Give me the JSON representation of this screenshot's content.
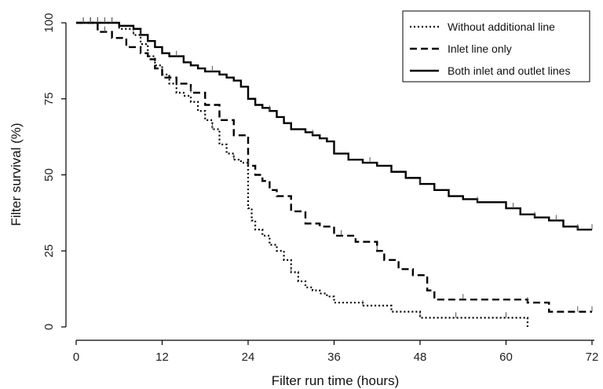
{
  "chart_data": {
    "type": "line",
    "subtype": "kaplan-meier step",
    "xlabel": "Filter run time (hours)",
    "ylabel": "Filter survival (%)",
    "xlim": [
      0,
      72
    ],
    "ylim": [
      0,
      100
    ],
    "xticks": [
      0,
      12,
      24,
      36,
      48,
      60,
      72
    ],
    "yticks": [
      0,
      25,
      50,
      75,
      100
    ],
    "grid": false,
    "legend_position": "top-right",
    "series": [
      {
        "name": "Without additional line",
        "style": "dotted",
        "color": "#000000",
        "x": [
          0,
          6,
          8,
          9,
          10,
          11,
          12,
          13,
          14,
          15,
          16,
          17,
          18,
          19,
          20,
          21,
          22,
          23,
          24,
          24.5,
          25,
          26,
          27,
          28,
          29,
          30,
          31,
          32,
          33,
          34,
          35,
          36,
          40,
          44,
          48,
          55,
          60,
          63
        ],
        "y": [
          100,
          98,
          96,
          93,
          89,
          86,
          83,
          80,
          77,
          76,
          74,
          71,
          68,
          65,
          60,
          57,
          55,
          54,
          39,
          35,
          32,
          30,
          27,
          25,
          22,
          18,
          15,
          13,
          12,
          11,
          10,
          8,
          7,
          5,
          3,
          3,
          3,
          0
        ],
        "censor_x": [
          1,
          2,
          3,
          5,
          8,
          19,
          22,
          30,
          40,
          48,
          53,
          60
        ]
      },
      {
        "name": "Inlet line only",
        "style": "dashed",
        "color": "#000000",
        "x": [
          0,
          3,
          5,
          7,
          9,
          10,
          11,
          12,
          14,
          16,
          18,
          20,
          22,
          24,
          25,
          26,
          27,
          28,
          30,
          32,
          34,
          36,
          39,
          42,
          43,
          45,
          47,
          49,
          50,
          55,
          63,
          66,
          72
        ],
        "y": [
          100,
          97,
          95,
          92,
          90,
          88,
          85,
          82,
          80,
          77,
          73,
          68,
          63,
          53,
          50,
          48,
          45,
          43,
          38,
          34,
          33,
          30,
          28,
          25,
          22,
          19,
          17,
          12,
          9,
          9,
          8,
          5,
          5
        ],
        "censor_x": [
          2,
          4,
          9,
          16,
          24,
          37,
          42,
          54,
          63,
          70,
          72
        ]
      },
      {
        "name": "Both inlet and outlet lines",
        "style": "solid",
        "color": "#000000",
        "x": [
          0,
          6,
          8,
          9,
          10,
          11,
          12,
          13,
          15,
          16,
          17,
          18,
          20,
          21,
          22,
          23,
          24,
          25,
          26,
          27,
          28,
          29,
          30,
          32,
          33,
          34,
          35,
          36,
          38,
          40,
          42,
          44,
          46,
          48,
          50,
          52,
          54,
          56,
          60,
          62,
          64,
          66,
          68,
          70,
          72
        ],
        "y": [
          100,
          99,
          98,
          96,
          94,
          92,
          90,
          89,
          87,
          86,
          85,
          84,
          83,
          82,
          81,
          79,
          75,
          73,
          72,
          71,
          69,
          67,
          65,
          64,
          63,
          62,
          61,
          57,
          55,
          54,
          53,
          51,
          49,
          47,
          45,
          43,
          42,
          41,
          39,
          37,
          36,
          35,
          33,
          32,
          32
        ],
        "censor_x": [
          1,
          2,
          3,
          4,
          5,
          9,
          14,
          19,
          27,
          33,
          41,
          48,
          56,
          61,
          64,
          67,
          70,
          72
        ]
      }
    ]
  }
}
